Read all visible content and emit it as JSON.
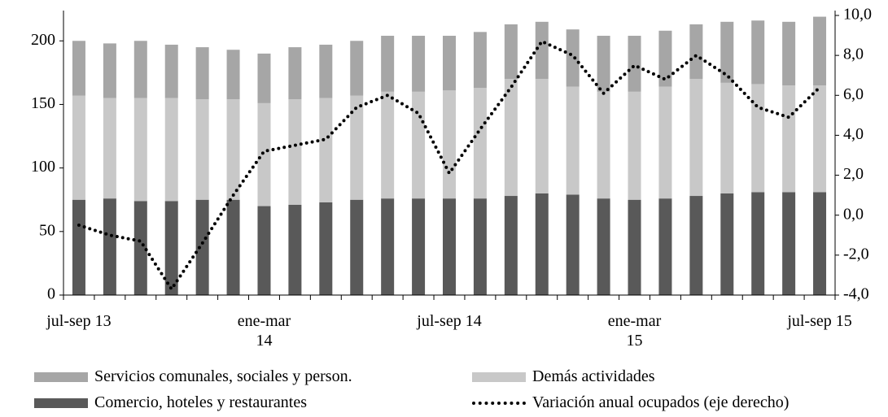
{
  "chart_data": {
    "type": "bar",
    "categories": [
      "jul-sep 13",
      null,
      null,
      null,
      null,
      null,
      "ene-mar 14",
      null,
      null,
      null,
      null,
      null,
      "jul-sep 14",
      null,
      null,
      null,
      null,
      null,
      "ene-mar 15",
      null,
      null,
      null,
      null,
      null,
      "jul-sep 15"
    ],
    "series": [
      {
        "name": "Comercio, hoteles y restaurantes",
        "color": "#595959",
        "type": "bar",
        "values": [
          75,
          76,
          74,
          74,
          75,
          75,
          70,
          71,
          73,
          75,
          76,
          76,
          76,
          76,
          78,
          80,
          79,
          76,
          75,
          76,
          78,
          80,
          81,
          81,
          81
        ]
      },
      {
        "name": "Demás actividades",
        "color": "#c8c8c8",
        "type": "bar",
        "values": [
          82,
          79,
          81,
          81,
          79,
          79,
          81,
          83,
          82,
          82,
          84,
          84,
          85,
          87,
          92,
          90,
          85,
          84,
          85,
          88,
          92,
          87,
          85,
          84,
          84
        ]
      },
      {
        "name": "Servicios comunales, sociales y person.",
        "color": "#a6a6a6",
        "type": "bar",
        "values": [
          43,
          43,
          45,
          42,
          41,
          39,
          39,
          41,
          42,
          43,
          44,
          44,
          43,
          44,
          43,
          45,
          45,
          44,
          44,
          44,
          43,
          48,
          50,
          50,
          54
        ]
      },
      {
        "name": "Variación anual ocupados (eje derecho)",
        "color": "#000000",
        "type": "line",
        "axis": "y2",
        "values": [
          -0.5,
          -1.0,
          -1.3,
          -3.7,
          -1.4,
          1.0,
          3.2,
          3.5,
          3.8,
          5.4,
          6.0,
          5.1,
          2.1,
          4.3,
          6.4,
          8.7,
          8.0,
          6.1,
          7.5,
          6.8,
          8.0,
          7.0,
          5.4,
          4.9,
          6.4
        ]
      }
    ],
    "ylim": [
      0,
      220
    ],
    "yticks": [
      0,
      50,
      100,
      150,
      200
    ],
    "y2lim": [
      -4,
      10
    ],
    "y2ticks": [
      {
        "value": -4,
        "label": "-4,0"
      },
      {
        "value": -2,
        "label": "-2,0"
      },
      {
        "value": 0,
        "label": "0,0"
      },
      {
        "value": 2,
        "label": "2,0"
      },
      {
        "value": 4,
        "label": "4,0"
      },
      {
        "value": 6,
        "label": "6,0"
      },
      {
        "value": 8,
        "label": "8,0"
      },
      {
        "value": 10,
        "label": "10,0"
      }
    ]
  }
}
